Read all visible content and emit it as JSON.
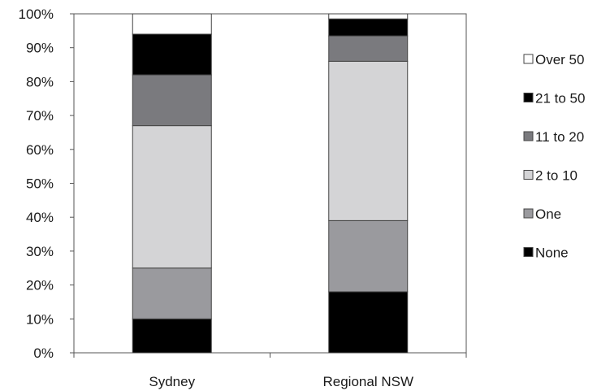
{
  "chart_data": {
    "type": "bar",
    "stacked": true,
    "percent": true,
    "categories": [
      "Sydney",
      "Regional NSW"
    ],
    "series": [
      {
        "name": "None",
        "color": "#000000",
        "values": [
          10,
          18
        ]
      },
      {
        "name": "One",
        "color": "#9a9a9e",
        "values": [
          15,
          21
        ]
      },
      {
        "name": "2 to 10",
        "color": "#d4d4d6",
        "values": [
          42,
          47
        ]
      },
      {
        "name": "11 to 20",
        "color": "#7a7a7e",
        "values": [
          15,
          7.5
        ]
      },
      {
        "name": "21 to 50",
        "color": "#000000",
        "values": [
          12,
          5
        ]
      },
      {
        "name": "Over 50",
        "color": "#ffffff",
        "values": [
          6,
          1.5
        ]
      }
    ],
    "yticks": [
      "0%",
      "10%",
      "20%",
      "30%",
      "40%",
      "50%",
      "60%",
      "70%",
      "80%",
      "90%",
      "100%"
    ],
    "ylim": [
      0,
      100
    ],
    "grid": false,
    "legend_position": "right",
    "legend_order": [
      "Over 50",
      "21 to 50",
      "11 to 20",
      "2 to 10",
      "One",
      "None"
    ]
  }
}
